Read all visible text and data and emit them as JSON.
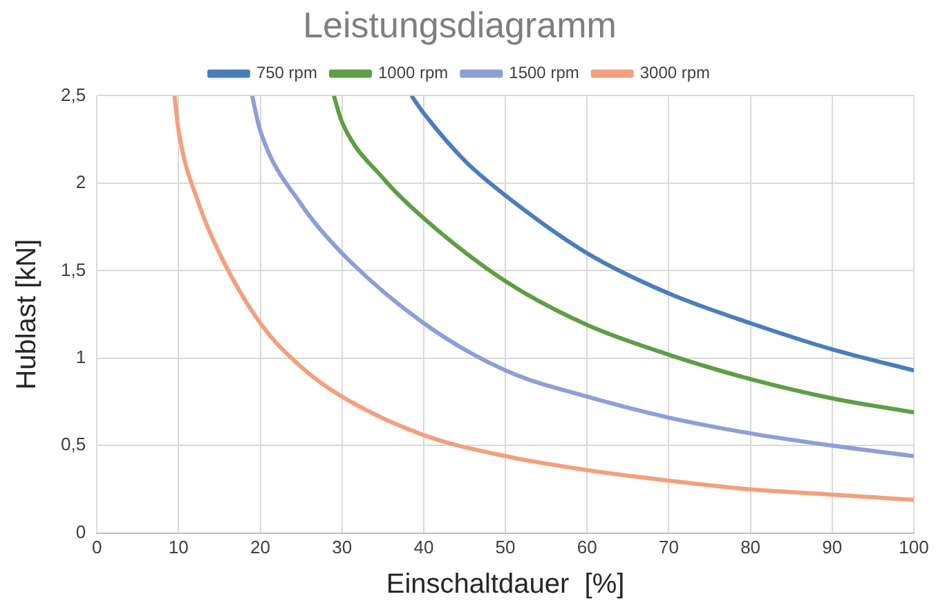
{
  "chart_data": {
    "type": "line",
    "title": "Leistungsdiagramm",
    "xlabel": "Einschaltdauer  [%]",
    "ylabel": "Hublast [kN]",
    "xlim": [
      0,
      100
    ],
    "xticks": [
      0,
      10,
      20,
      30,
      40,
      50,
      60,
      70,
      80,
      90,
      100
    ],
    "ylim": [
      0,
      2.5
    ],
    "yticks": [
      0,
      {
        "value": 0.5,
        "label": "0,5"
      },
      1,
      {
        "value": 1.5,
        "label": "1,5"
      },
      2,
      {
        "value": 2.5,
        "label": "2,5"
      }
    ],
    "grid": true,
    "legend": "top",
    "marker": "none",
    "line_style": "solid",
    "series": [
      {
        "name": "750 rpm",
        "color": "#4a7ebb",
        "x": [
          38.5,
          40,
          45,
          50,
          60,
          70,
          80,
          90,
          100
        ],
        "values": [
          2.5,
          2.4,
          2.13,
          1.93,
          1.6,
          1.37,
          1.2,
          1.05,
          0.93
        ]
      },
      {
        "name": "1000 rpm",
        "color": "#5e9e44",
        "x": [
          29,
          30,
          35,
          40,
          50,
          60,
          70,
          80,
          90,
          100
        ],
        "values": [
          2.5,
          2.35,
          2.03,
          1.8,
          1.44,
          1.19,
          1.02,
          0.88,
          0.77,
          0.69
        ]
      },
      {
        "name": "1500 rpm",
        "color": "#8c9fd8",
        "x": [
          19,
          20,
          25,
          30,
          40,
          50,
          60,
          70,
          80,
          90,
          100
        ],
        "values": [
          2.5,
          2.3,
          1.88,
          1.6,
          1.2,
          0.93,
          0.78,
          0.66,
          0.57,
          0.5,
          0.44
        ]
      },
      {
        "name": "3000 rpm",
        "color": "#f2a07e",
        "x": [
          9.5,
          10,
          12.5,
          15,
          20,
          25,
          30,
          40,
          50,
          60,
          70,
          80,
          90,
          100
        ],
        "values": [
          2.5,
          2.3,
          1.88,
          1.6,
          1.2,
          0.95,
          0.78,
          0.56,
          0.44,
          0.36,
          0.3,
          0.25,
          0.22,
          0.19
        ]
      }
    ]
  }
}
